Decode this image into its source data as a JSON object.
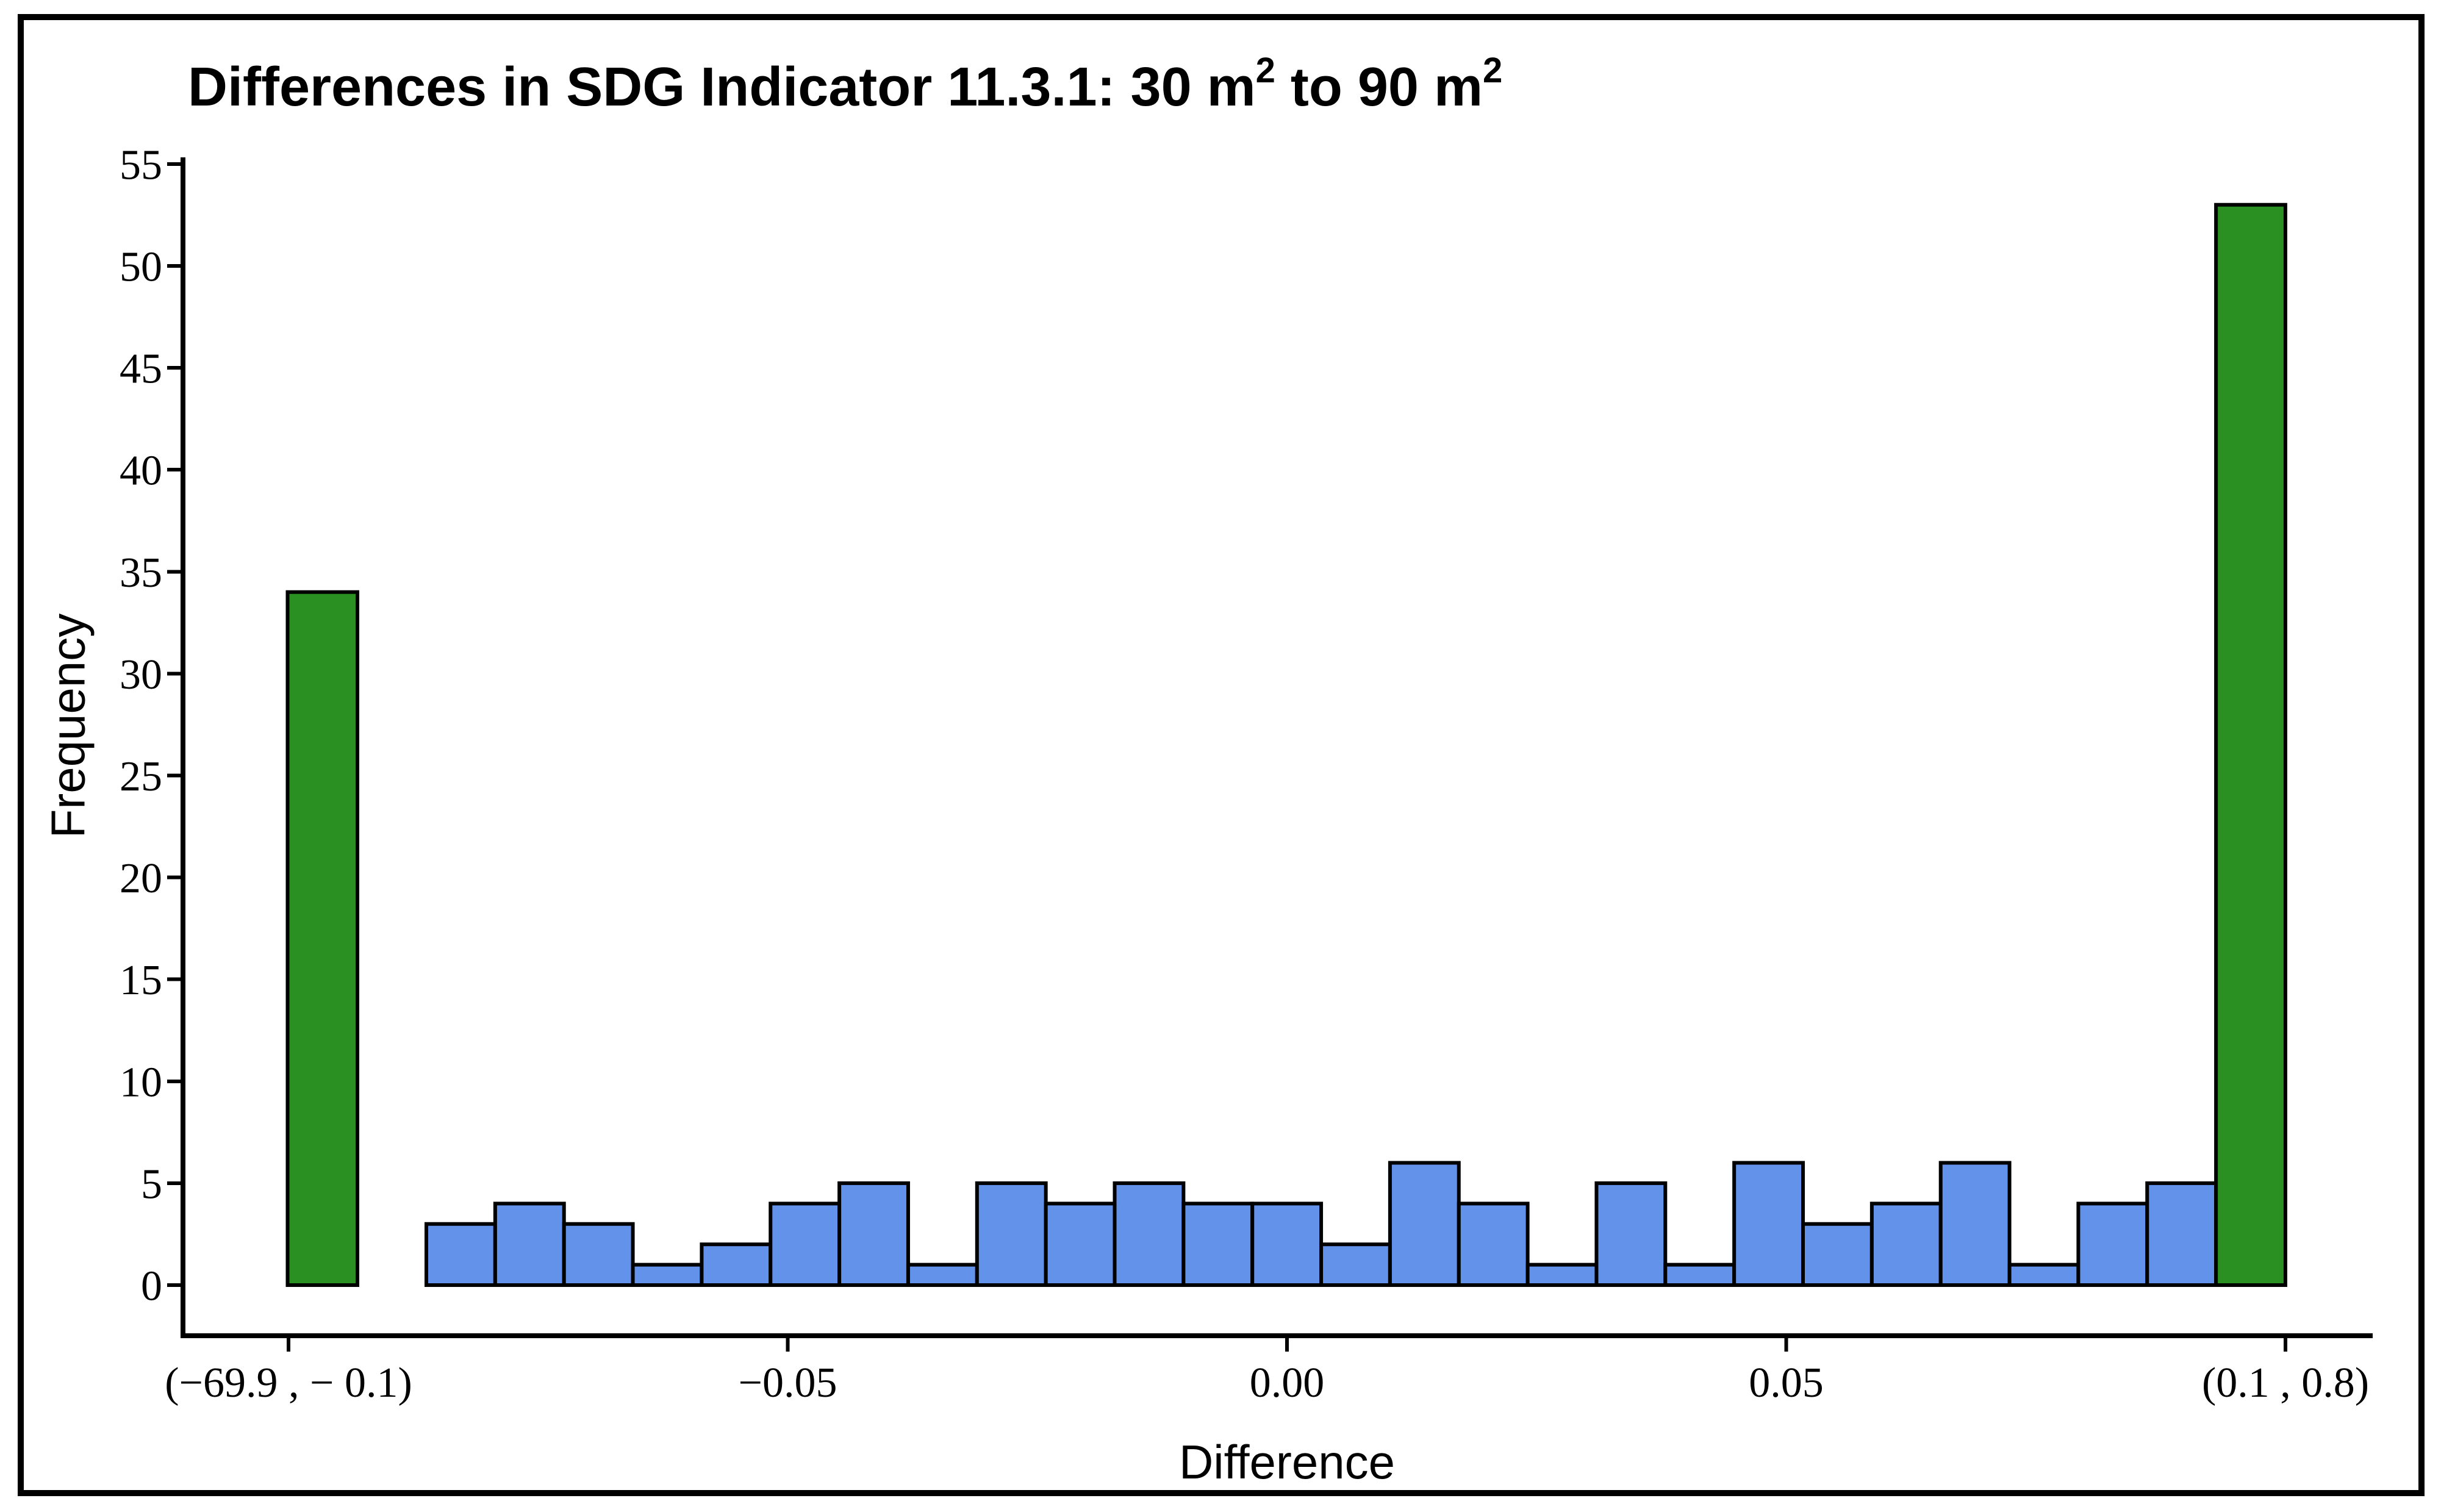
{
  "figure": {
    "title_part1": "Differences in SDG Indicator 11.3.1: 30 m",
    "title_sup1": "2",
    "title_part2": " to 90 m",
    "title_sup2": "2",
    "x_axis_label": "Difference",
    "y_axis_label": "Frequency"
  },
  "colors": {
    "edge_bin_green": "#2a9022",
    "regular_bin_blue": "#6292e9",
    "bar_outline": "#000000",
    "axis_black": "#000000",
    "background": "#ffffff"
  },
  "chart_data": {
    "type": "bar",
    "subtype": "histogram",
    "title": "Differences in SDG Indicator 11.3.1: 30 m² to 90 m²",
    "xlabel": "Difference",
    "ylabel": "Frequency",
    "ylim": [
      0,
      55
    ],
    "yticks": [
      0,
      5,
      10,
      15,
      20,
      25,
      30,
      35,
      40,
      45,
      50,
      55
    ],
    "xtick_labels": [
      "(−69.9 , − 0.1)",
      "−0.05",
      "0.00",
      "0.05",
      "(0.1 , 0.8)"
    ],
    "grid": false,
    "legend": false,
    "approx_blue_bin_width": 0.0069,
    "bars": [
      {
        "bin": "(−69.9 , −0.1)",
        "x_center": null,
        "frequency": 34,
        "color": "green",
        "role": "edge-bin-low"
      },
      {
        "x_center": -0.0828,
        "frequency": 3,
        "color": "blue"
      },
      {
        "x_center": -0.0759,
        "frequency": 4,
        "color": "blue"
      },
      {
        "x_center": -0.069,
        "frequency": 3,
        "color": "blue"
      },
      {
        "x_center": -0.0621,
        "frequency": 1,
        "color": "blue"
      },
      {
        "x_center": -0.0552,
        "frequency": 2,
        "color": "blue"
      },
      {
        "x_center": -0.0483,
        "frequency": 4,
        "color": "blue"
      },
      {
        "x_center": -0.0414,
        "frequency": 5,
        "color": "blue"
      },
      {
        "x_center": -0.0345,
        "frequency": 1,
        "color": "blue"
      },
      {
        "x_center": -0.0276,
        "frequency": 5,
        "color": "blue"
      },
      {
        "x_center": -0.0207,
        "frequency": 4,
        "color": "blue"
      },
      {
        "x_center": -0.0138,
        "frequency": 5,
        "color": "blue"
      },
      {
        "x_center": -0.0069,
        "frequency": 4,
        "color": "blue"
      },
      {
        "x_center": 0.0,
        "frequency": 4,
        "color": "blue"
      },
      {
        "x_center": 0.0069,
        "frequency": 2,
        "color": "blue"
      },
      {
        "x_center": 0.0138,
        "frequency": 6,
        "color": "blue"
      },
      {
        "x_center": 0.0207,
        "frequency": 4,
        "color": "blue"
      },
      {
        "x_center": 0.0276,
        "frequency": 1,
        "color": "blue"
      },
      {
        "x_center": 0.0345,
        "frequency": 5,
        "color": "blue"
      },
      {
        "x_center": 0.0414,
        "frequency": 1,
        "color": "blue"
      },
      {
        "x_center": 0.0483,
        "frequency": 6,
        "color": "blue"
      },
      {
        "x_center": 0.0552,
        "frequency": 3,
        "color": "blue"
      },
      {
        "x_center": 0.0621,
        "frequency": 4,
        "color": "blue"
      },
      {
        "x_center": 0.069,
        "frequency": 6,
        "color": "blue"
      },
      {
        "x_center": 0.0759,
        "frequency": 1,
        "color": "blue"
      },
      {
        "x_center": 0.0828,
        "frequency": 4,
        "color": "blue"
      },
      {
        "x_center": 0.0897,
        "frequency": 5,
        "color": "blue"
      },
      {
        "bin": "(0.1 , 0.8)",
        "x_center": null,
        "frequency": 53,
        "color": "green",
        "role": "edge-bin-high"
      }
    ]
  }
}
